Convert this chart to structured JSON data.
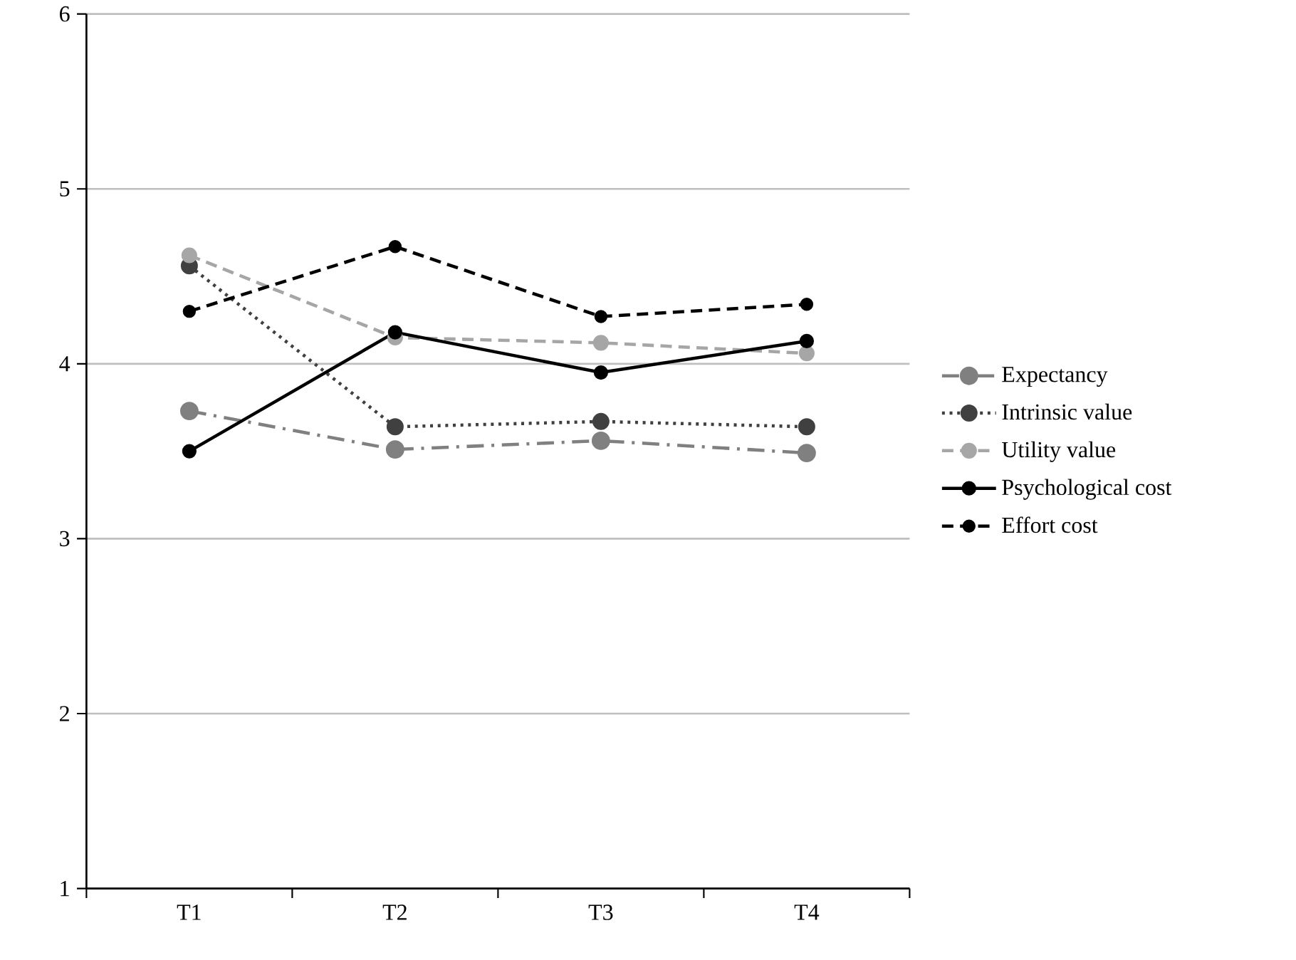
{
  "chart_data": {
    "type": "line",
    "categories": [
      "T1",
      "T2",
      "T3",
      "T4"
    ],
    "series": [
      {
        "name": "Expectancy",
        "color": "#808080",
        "line_style": "dashdot",
        "values": [
          3.73,
          3.51,
          3.56,
          3.49
        ]
      },
      {
        "name": "Intrinsic value",
        "color": "#404040",
        "line_style": "dotted",
        "values": [
          4.56,
          3.64,
          3.67,
          3.64
        ]
      },
      {
        "name": "Utility value",
        "color": "#a6a6a6",
        "line_style": "dashed",
        "values": [
          4.62,
          4.15,
          4.12,
          4.06
        ]
      },
      {
        "name": "Psychological cost",
        "color": "#000000",
        "line_style": "solid",
        "values": [
          3.5,
          4.18,
          3.95,
          4.13
        ]
      },
      {
        "name": "Effort cost",
        "color": "#000000",
        "line_style": "dashed",
        "values": [
          4.3,
          4.67,
          4.27,
          4.34
        ]
      }
    ],
    "ylim": [
      1,
      6
    ],
    "yticks": [
      1,
      2,
      3,
      4,
      5,
      6
    ],
    "grid": "y",
    "legend": "right",
    "marker": "circle"
  }
}
